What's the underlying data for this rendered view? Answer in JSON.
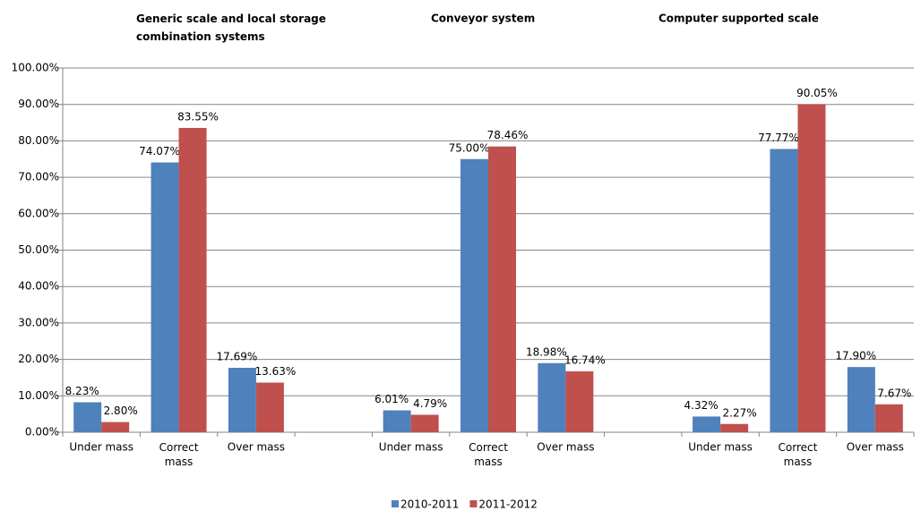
{
  "chart_data": {
    "type": "bar",
    "annotations": [
      "Generic scale and local storage combination systems",
      "Conveyor system",
      "Computer supported scale"
    ],
    "categories": [
      "Under mass",
      "Correct mass",
      "Over mass",
      null,
      "Under mass",
      "Correct mass",
      "Over mass",
      null,
      "Under mass",
      "Correct mass",
      "Over mass"
    ],
    "series": [
      {
        "name": "2010-2011",
        "color": "#4f81bd",
        "values": [
          8.23,
          74.07,
          17.69,
          null,
          6.01,
          75.0,
          18.98,
          null,
          4.32,
          77.77,
          17.9
        ],
        "value_labels": [
          "8.23%",
          "74.07%",
          "17.69%",
          null,
          "6.01%",
          "75.00%",
          "18.98%",
          null,
          "4.32%",
          "77.77%",
          "17.90%"
        ]
      },
      {
        "name": "2011-2012",
        "color": "#c0504d",
        "values": [
          2.8,
          83.55,
          13.63,
          null,
          4.79,
          78.46,
          16.74,
          null,
          2.27,
          90.05,
          7.67
        ],
        "value_labels": [
          "2.80%",
          "83.55%",
          "13.63%",
          null,
          "4.79%",
          "78.46%",
          "16.74%",
          null,
          "2.27%",
          "90.05%",
          "7.67%"
        ]
      }
    ],
    "ylim": [
      0,
      100
    ],
    "yticks": [
      {
        "value": 0,
        "label": "0.00%"
      },
      {
        "value": 10,
        "label": "10.00%"
      },
      {
        "value": 20,
        "label": "20.00%"
      },
      {
        "value": 30,
        "label": "30.00%"
      },
      {
        "value": 40,
        "label": "40.00%"
      },
      {
        "value": 50,
        "label": "50.00%"
      },
      {
        "value": 60,
        "label": "60.00%"
      },
      {
        "value": 70,
        "label": "70.00%"
      },
      {
        "value": 80,
        "label": "80.00%"
      },
      {
        "value": 90,
        "label": "90.00%"
      },
      {
        "value": 100,
        "label": "100.00%"
      }
    ],
    "grid": true,
    "legend": "bottom"
  }
}
